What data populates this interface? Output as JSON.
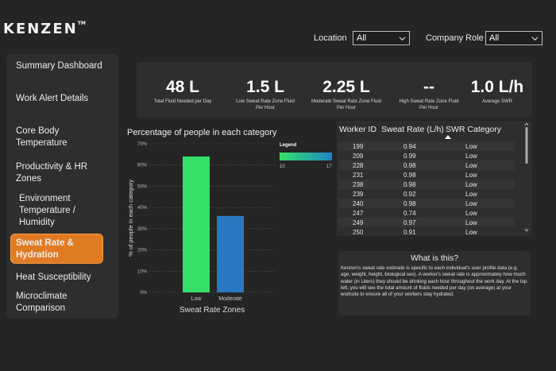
{
  "app": {
    "logo": "KENZEN",
    "logo_mark": "TM"
  },
  "filters": {
    "location": {
      "label": "Location",
      "value": "All"
    },
    "company_role": {
      "label": "Company Role",
      "value": "All"
    }
  },
  "sidebar": {
    "items": [
      {
        "label": "Summary Dashboard",
        "active": false
      },
      {
        "label": "Work Alert Details",
        "active": false
      },
      {
        "label": "Core Body Temperature",
        "active": false
      },
      {
        "label": "Productivity & HR Zones",
        "active": false
      },
      {
        "label": "Environment Temperature / Humidity",
        "active": false
      },
      {
        "label": "Sweat Rate & Hydration",
        "active": true
      },
      {
        "label": "Heat Susceptibility",
        "active": false
      },
      {
        "label": "Microclimate Comparison",
        "active": false
      }
    ]
  },
  "kpis": [
    {
      "value": "48 L",
      "label": "Total Fluid Needed per Day"
    },
    {
      "value": "1.5 L",
      "label": "Low Sweat Rate Zone Fluid Per Hour"
    },
    {
      "value": "2.25 L",
      "label": "Moderate Sweat Rate Zone Fluid Per Hour"
    },
    {
      "value": "--",
      "label": "High Sweat Rate Zone Fluid Per Hour"
    },
    {
      "value": "1.0 L/h",
      "label": "Average SWR"
    }
  ],
  "chart_data": {
    "type": "bar",
    "title": "Percentage of people in each category",
    "xlabel": "Sweat Rate Zones",
    "ylabel": "% of people in each category",
    "categories": [
      "Low",
      "Moderate"
    ],
    "values": [
      64,
      36
    ],
    "ylim": [
      0,
      70
    ],
    "yticks": [
      "0%",
      "10%",
      "20%",
      "30%",
      "40%",
      "50%",
      "60%",
      "70%"
    ],
    "colors": [
      "#34e067",
      "#2a78c2"
    ],
    "grid": true,
    "legend": {
      "title": "Legend",
      "min": "10",
      "max": "17",
      "gradient": [
        "#34e067",
        "#1c86c8"
      ],
      "placement": "top-right"
    }
  },
  "table": {
    "headers": [
      "Worker ID",
      "Sweat Rate (L/h)",
      "SWR Category"
    ],
    "rows": [
      [
        "199",
        "0.94",
        "Low"
      ],
      [
        "209",
        "0.99",
        "Low"
      ],
      [
        "228",
        "0.98",
        "Low"
      ],
      [
        "231",
        "0.98",
        "Low"
      ],
      [
        "238",
        "0.98",
        "Low"
      ],
      [
        "239",
        "0.92",
        "Low"
      ],
      [
        "240",
        "0.98",
        "Low"
      ],
      [
        "247",
        "0.74",
        "Low"
      ],
      [
        "249",
        "0.97",
        "Low"
      ],
      [
        "250",
        "0.91",
        "Low"
      ]
    ]
  },
  "info": {
    "title": "What is this?",
    "text": "Kenzen's sweat rate estimate is specific to each individual's user profile data (e.g. age, weight, height, biological sex). A worker's sweat rate is approximately how much water (in Liters) they should be drinking each hour throughout the work day. At the top left, you will see the total amount of fluids needed per day (on average) at your worksite to ensure all of your workers stay hydrated."
  },
  "colors": {
    "accent": "#e07b22",
    "background": "#252525",
    "card": "#2e2e2e"
  }
}
